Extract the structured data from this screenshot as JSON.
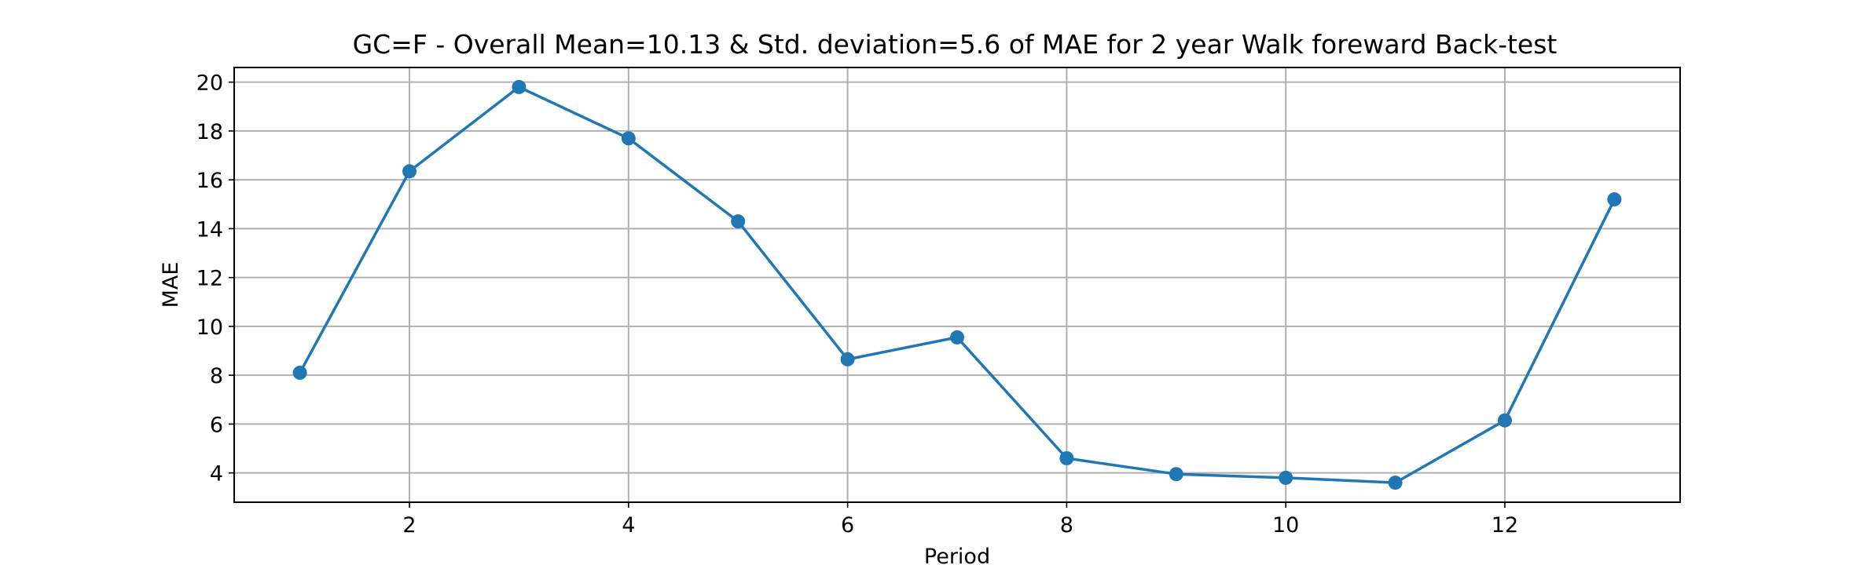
{
  "chart_data": {
    "type": "line",
    "title": "GC=F - Overall Mean=10.13 & Std. deviation=5.6 of MAE for 2 year Walk foreward Back-test",
    "xlabel": "Period",
    "ylabel": "MAE",
    "x": [
      1,
      2,
      3,
      4,
      5,
      6,
      7,
      8,
      9,
      10,
      11,
      12,
      13
    ],
    "series": [
      {
        "values": [
          8.1,
          16.35,
          19.8,
          17.7,
          14.3,
          8.65,
          9.55,
          4.6,
          3.95,
          3.8,
          3.6,
          6.15,
          15.2
        ],
        "color": "#1f77b4",
        "marker": "circle"
      }
    ],
    "xlim": [
      0.4,
      13.6
    ],
    "ylim": [
      2.8,
      20.6
    ],
    "xticks": [
      2,
      4,
      6,
      8,
      10,
      12
    ],
    "yticks": [
      4,
      6,
      8,
      10,
      12,
      14,
      16,
      18,
      20
    ],
    "grid": true,
    "legend": "none"
  }
}
